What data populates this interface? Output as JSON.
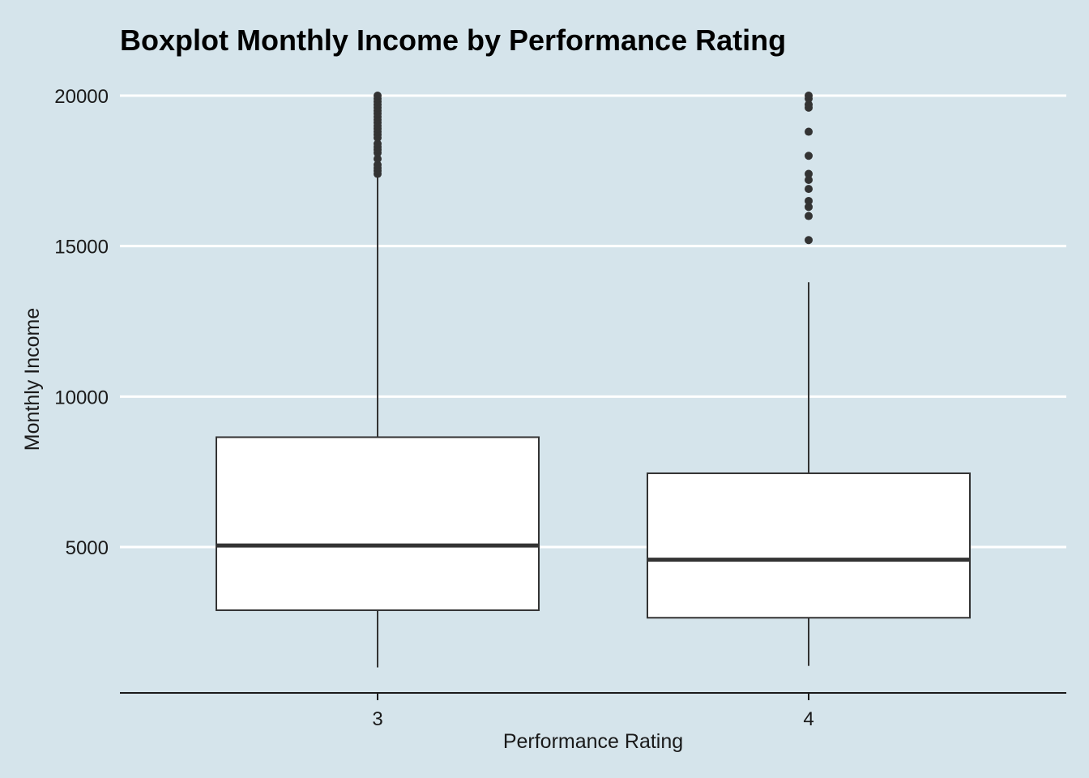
{
  "chart_data": {
    "type": "boxplot",
    "title": "Boxplot Monthly Income by Performance Rating",
    "xlabel": "Performance Rating",
    "ylabel": "Monthly Income",
    "categories": [
      "3",
      "4"
    ],
    "ylim": [
      0,
      20000
    ],
    "yticks": [
      5000,
      10000,
      15000,
      20000
    ],
    "grid": "horizontal major lines",
    "legend": "none",
    "boxes": [
      {
        "category": "3",
        "whisker_low": 1000,
        "q1": 2900,
        "median": 5050,
        "q3": 8650,
        "whisker_high": 17300,
        "outliers": [
          17400,
          17500,
          17600,
          17700,
          17900,
          18100,
          18200,
          18300,
          18400,
          18600,
          18700,
          18800,
          18900,
          19000,
          19100,
          19200,
          19300,
          19400,
          19500,
          19600,
          19700,
          19800,
          19900,
          20000
        ]
      },
      {
        "category": "4",
        "whisker_low": 1050,
        "q1": 2650,
        "median": 4580,
        "q3": 7450,
        "whisker_high": 13800,
        "outliers": [
          15200,
          16000,
          16300,
          16500,
          16900,
          17200,
          17400,
          18000,
          18800,
          19600,
          19700,
          19900,
          20000
        ]
      }
    ],
    "colors": {
      "background": "#d5e4eb",
      "box_fill": "#ffffff",
      "box_line": "#333333",
      "grid": "#ffffff"
    }
  }
}
